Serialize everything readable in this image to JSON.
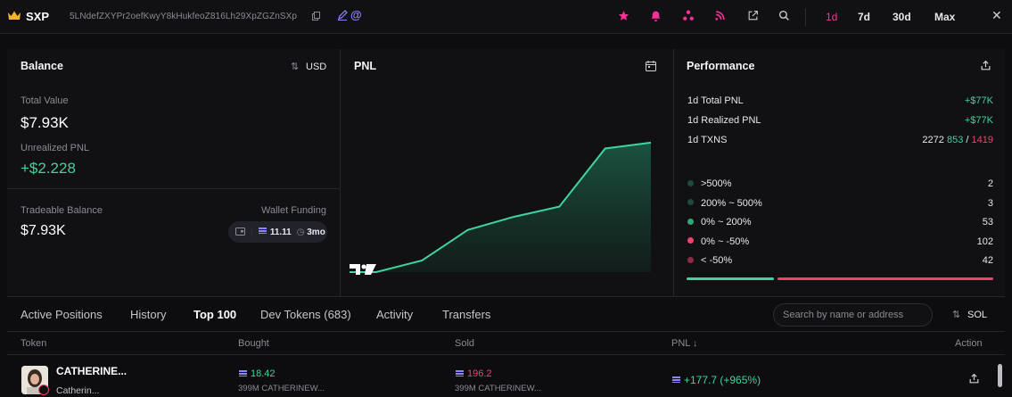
{
  "header": {
    "symbol": "SXP",
    "address": "5LNdefZXYPr2oefKwyY8kHukfeoZ816Lh29XpZGZnSXp",
    "timeframes": [
      "1d",
      "7d",
      "30d",
      "Max"
    ],
    "active_timeframe": "1d",
    "icons": [
      "star-icon",
      "bell-icon",
      "share-nodes-icon",
      "rss-icon",
      "external-link-icon",
      "search-icon",
      "close-icon"
    ],
    "accent_color": "#ff2f9a"
  },
  "balance": {
    "title": "Balance",
    "currency_toggle": "USD",
    "total_value_label": "Total Value",
    "total_value": "$7.93K",
    "unrealized_label": "Unrealized PNL",
    "unrealized_value": "+$2.228",
    "tradeable_label": "Tradeable Balance",
    "tradeable_value": "$7.93K",
    "funding_label": "Wallet Funding",
    "funding_amount": "11.11",
    "funding_age": "3mo"
  },
  "pnl": {
    "title": "PNL",
    "logo_text": "TV",
    "series": [
      0.0,
      0.0,
      0.08,
      0.29,
      0.38,
      0.45,
      0.85,
      0.89
    ]
  },
  "performance": {
    "title": "Performance",
    "total_pnl_label": "1d Total PNL",
    "total_pnl": "+$77K",
    "realized_pnl_label": "1d Realized PNL",
    "realized_pnl": "+$77K",
    "txns_label": "1d TXNS",
    "txns_total": "2272",
    "txns_buy": "853",
    "txns_sep": "/",
    "txns_sell": "1419",
    "buckets": [
      {
        "label": ">500%",
        "count": "2",
        "color": "#1f4a3a"
      },
      {
        "label": "200% ~ 500%",
        "count": "3",
        "color": "#1f4a3a"
      },
      {
        "label": "0% ~ 200%",
        "count": "53",
        "color": "#2fa876"
      },
      {
        "label": "0% ~ -50%",
        "count": "102",
        "color": "#f0436c"
      },
      {
        "label": "< -50%",
        "count": "42",
        "color": "#8e2a44"
      }
    ],
    "bar_green_fraction": 0.27
  },
  "tabs": {
    "items": [
      "Active Positions",
      "History",
      "Top 100",
      "Dev Tokens (683)",
      "Activity",
      "Transfers"
    ],
    "active": "Top 100",
    "search_placeholder": "Search by name or address",
    "unit_toggle": "SOL"
  },
  "table": {
    "headers": {
      "token": "Token",
      "bought": "Bought",
      "sold": "Sold",
      "pnl": "PNL ↓",
      "action": "Action"
    },
    "rows": [
      {
        "name": "CATHERINE...",
        "subname": "Catherin...",
        "bought": "18.42",
        "bought_sub": "399M CATHERINEW...",
        "sold": "196.2",
        "sold_sub": "399M CATHERINEW...",
        "pnl": "+177.7 (+965%)"
      }
    ]
  }
}
